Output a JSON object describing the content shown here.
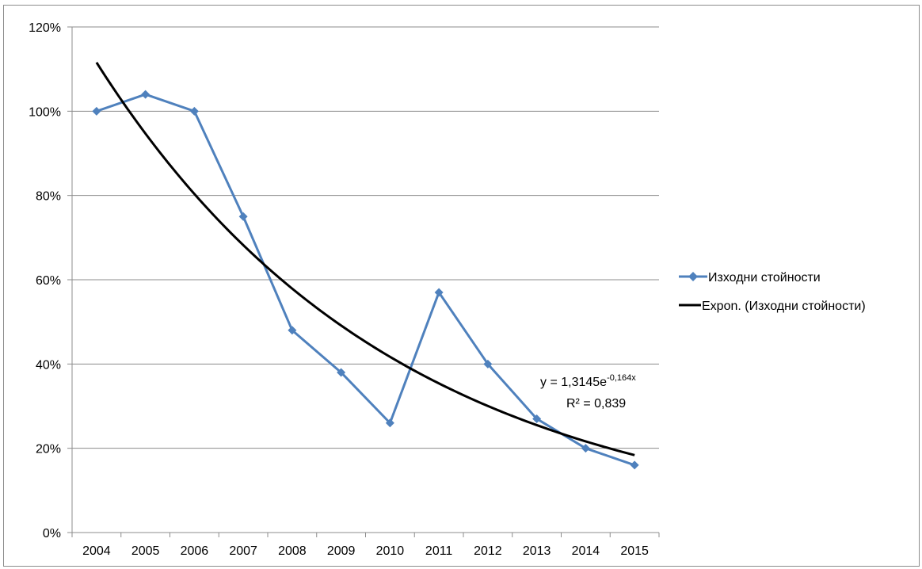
{
  "chart_data": {
    "type": "line",
    "title": "",
    "xlabel": "",
    "ylabel": "",
    "categories": [
      "2004",
      "2005",
      "2006",
      "2007",
      "2008",
      "2009",
      "2010",
      "2011",
      "2012",
      "2013",
      "2014",
      "2015"
    ],
    "ylim": [
      0,
      1.2
    ],
    "y_ticks": [
      0,
      0.2,
      0.4,
      0.6,
      0.8,
      1.0,
      1.2
    ],
    "y_tick_labels": [
      "0%",
      "20%",
      "40%",
      "60%",
      "80%",
      "100%",
      "120%"
    ],
    "grid": "horizontal",
    "legend_position": "right",
    "series": [
      {
        "name": "Изходни стойности",
        "color": "#4f81bd",
        "marker": "diamond",
        "values": [
          1.0,
          1.04,
          1.0,
          0.75,
          0.48,
          0.38,
          0.26,
          0.57,
          0.4,
          0.27,
          0.2,
          0.16
        ]
      }
    ],
    "trendline": {
      "name": "Expon. (Изходни стойности)",
      "color": "#000000",
      "type": "exponential",
      "coefficient": 1.3145,
      "exponent": -0.164,
      "equation_prefix": "y = 1,3145e",
      "equation_exponent": "-0,164x",
      "r_squared_label": "R² = 0,839"
    }
  }
}
